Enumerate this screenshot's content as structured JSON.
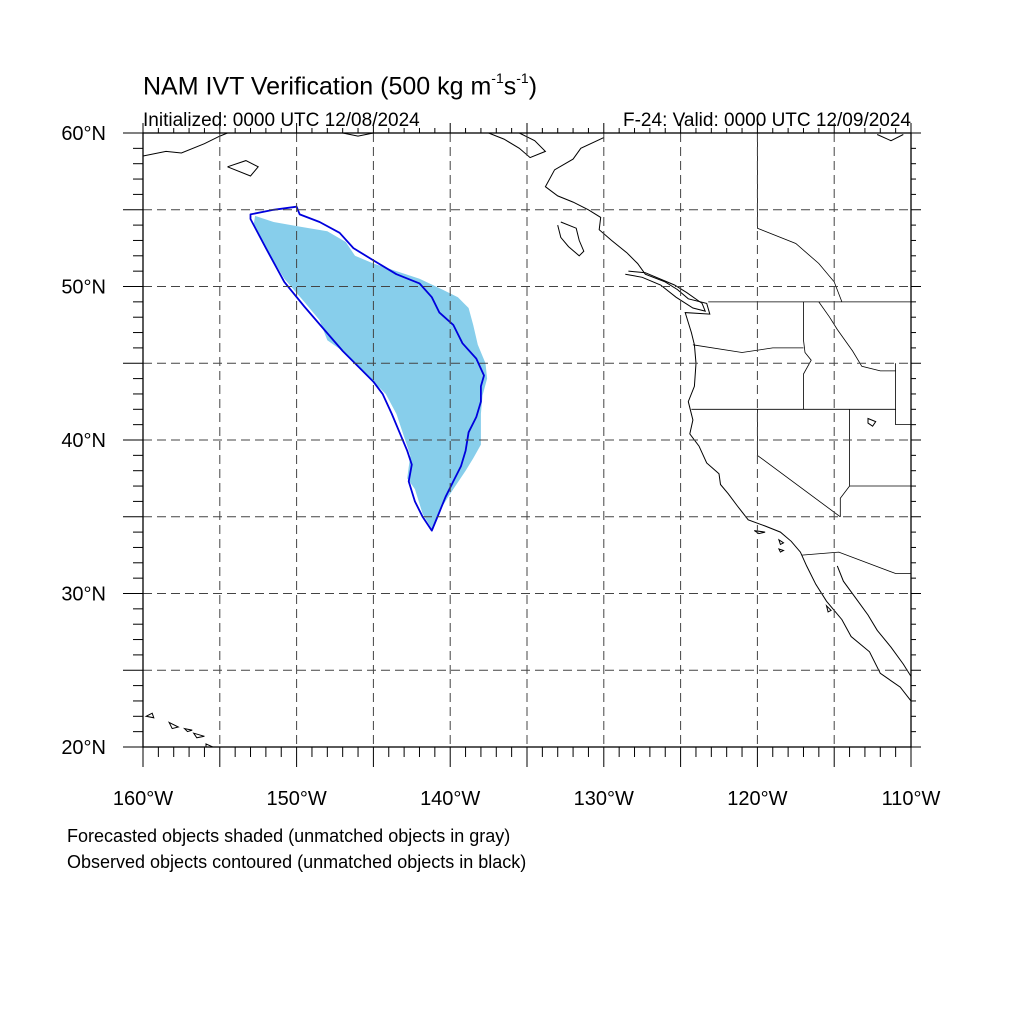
{
  "title": {
    "main": "NAM IVT Verification (500 kg m",
    "exp1": "-1",
    "mid": "s",
    "exp2": "-1",
    "tail": ")"
  },
  "subtitle_left": "Initialized: 0000 UTC 12/08/2024",
  "subtitle_right": "F-24: Valid: 0000 UTC 12/09/2024",
  "notes": [
    "Forecasted objects shaded (unmatched objects in gray)",
    "Observed objects contoured (unmatched objects in black)"
  ],
  "axes": {
    "x_labels": [
      "160°W",
      "150°W",
      "140°W",
      "130°W",
      "120°W",
      "110°W"
    ],
    "y_labels": [
      "60°N",
      "50°N",
      "40°N",
      "30°N",
      "20°N"
    ]
  },
  "map": {
    "lon_range": [
      -160,
      -110
    ],
    "lat_range": [
      20,
      60
    ],
    "grid_step_deg": 5,
    "gridlines": true,
    "colors": {
      "forecast_fill": "#87ceeb",
      "observed_contour": "#0000dd",
      "gridline": "#444444",
      "coastline": "#000000"
    }
  },
  "forecast_object": {
    "color": "#87ceeb",
    "polygon": [
      [
        -152.7,
        54.6
      ],
      [
        -151.5,
        54.2
      ],
      [
        -149.8,
        53.9
      ],
      [
        -148.0,
        53.6
      ],
      [
        -146.8,
        52.9
      ],
      [
        -146.2,
        52.0
      ],
      [
        -145.0,
        51.5
      ],
      [
        -143.5,
        51.0
      ],
      [
        -142.0,
        50.5
      ],
      [
        -140.5,
        49.8
      ],
      [
        -139.5,
        49.3
      ],
      [
        -138.8,
        48.6
      ],
      [
        -138.5,
        47.5
      ],
      [
        -138.2,
        46.2
      ],
      [
        -137.7,
        45.0
      ],
      [
        -137.6,
        44.0
      ],
      [
        -137.9,
        42.9
      ],
      [
        -138.0,
        41.7
      ],
      [
        -138.0,
        39.7
      ],
      [
        -138.5,
        38.8
      ],
      [
        -139.0,
        38.0
      ],
      [
        -139.8,
        36.8
      ],
      [
        -140.5,
        35.7
      ],
      [
        -141.2,
        34.2
      ],
      [
        -141.8,
        35.2
      ],
      [
        -142.3,
        36.8
      ],
      [
        -142.8,
        37.5
      ],
      [
        -142.6,
        39.0
      ],
      [
        -143.0,
        40.2
      ],
      [
        -143.5,
        41.7
      ],
      [
        -144.2,
        43.0
      ],
      [
        -145.5,
        44.3
      ],
      [
        -147.0,
        45.8
      ],
      [
        -148.0,
        46.5
      ],
      [
        -148.5,
        47.8
      ],
      [
        -149.5,
        49.0
      ],
      [
        -150.8,
        50.5
      ],
      [
        -152.0,
        52.5
      ],
      [
        -152.8,
        54.0
      ]
    ]
  },
  "observed_object": {
    "color": "#0000dd",
    "polygon": [
      [
        -153.0,
        54.7
      ],
      [
        -151.5,
        55.0
      ],
      [
        -150.0,
        55.2
      ],
      [
        -149.8,
        54.7
      ],
      [
        -148.5,
        54.2
      ],
      [
        -147.2,
        53.5
      ],
      [
        -146.3,
        52.5
      ],
      [
        -145.0,
        51.7
      ],
      [
        -143.5,
        50.8
      ],
      [
        -142.0,
        50.2
      ],
      [
        -141.2,
        49.3
      ],
      [
        -140.7,
        48.3
      ],
      [
        -139.8,
        47.5
      ],
      [
        -139.2,
        46.3
      ],
      [
        -138.3,
        45.3
      ],
      [
        -137.8,
        44.2
      ],
      [
        -138.0,
        43.5
      ],
      [
        -138.0,
        42.5
      ],
      [
        -138.3,
        41.5
      ],
      [
        -138.8,
        40.5
      ],
      [
        -139.0,
        39.3
      ],
      [
        -139.3,
        38.3
      ],
      [
        -139.8,
        37.3
      ],
      [
        -140.3,
        36.3
      ],
      [
        -140.7,
        35.3
      ],
      [
        -141.2,
        34.1
      ],
      [
        -141.8,
        35.0
      ],
      [
        -142.3,
        36.0
      ],
      [
        -142.7,
        37.3
      ],
      [
        -142.5,
        38.4
      ],
      [
        -142.8,
        39.3
      ],
      [
        -143.3,
        40.5
      ],
      [
        -143.8,
        41.7
      ],
      [
        -144.4,
        43.0
      ],
      [
        -145.0,
        43.8
      ],
      [
        -145.8,
        44.6
      ],
      [
        -147.0,
        45.8
      ],
      [
        -148.3,
        47.3
      ],
      [
        -149.5,
        48.7
      ],
      [
        -150.8,
        50.3
      ],
      [
        -152.0,
        52.5
      ],
      [
        -153.0,
        54.4
      ]
    ]
  },
  "coastlines": [
    [
      [
        -130.0,
        59.7
      ],
      [
        -131.5,
        59.0
      ],
      [
        -132.0,
        58.3
      ],
      [
        -133.2,
        57.6
      ],
      [
        -133.8,
        56.5
      ],
      [
        -133.0,
        55.9
      ],
      [
        -132.0,
        55.5
      ],
      [
        -131.0,
        55.0
      ],
      [
        -130.2,
        54.5
      ],
      [
        -130.3,
        53.7
      ],
      [
        -129.5,
        53.0
      ],
      [
        -128.5,
        52.2
      ],
      [
        -127.8,
        51.5
      ],
      [
        -127.3,
        50.8
      ],
      [
        -126.0,
        50.3
      ],
      [
        -125.2,
        49.8
      ],
      [
        -124.5,
        49.2
      ],
      [
        -123.3,
        48.9
      ],
      [
        -123.1,
        48.2
      ],
      [
        -124.7,
        48.3
      ],
      [
        -124.3,
        47.0
      ],
      [
        -124.1,
        46.2
      ],
      [
        -124.0,
        45.0
      ],
      [
        -124.1,
        43.5
      ],
      [
        -124.5,
        42.5
      ],
      [
        -124.2,
        41.3
      ],
      [
        -124.4,
        40.4
      ],
      [
        -123.8,
        39.6
      ],
      [
        -123.3,
        38.5
      ],
      [
        -122.5,
        37.8
      ],
      [
        -122.4,
        37.1
      ],
      [
        -121.9,
        36.5
      ],
      [
        -121.3,
        35.7
      ],
      [
        -120.6,
        34.8
      ],
      [
        -119.5,
        34.4
      ],
      [
        -118.5,
        34.0
      ],
      [
        -117.8,
        33.4
      ],
      [
        -117.2,
        32.7
      ],
      [
        -116.8,
        31.8
      ],
      [
        -116.2,
        30.6
      ],
      [
        -115.5,
        29.5
      ],
      [
        -114.5,
        28.3
      ],
      [
        -113.9,
        27.2
      ],
      [
        -112.7,
        26.2
      ],
      [
        -112.0,
        24.8
      ],
      [
        -110.7,
        23.9
      ],
      [
        -110.0,
        23.0
      ]
    ],
    [
      [
        -114.8,
        31.8
      ],
      [
        -114.4,
        30.8
      ],
      [
        -113.6,
        29.7
      ],
      [
        -112.8,
        28.6
      ],
      [
        -112.2,
        27.6
      ],
      [
        -111.3,
        26.5
      ],
      [
        -110.5,
        25.4
      ],
      [
        -110.0,
        24.6
      ]
    ],
    [
      [
        -160.0,
        58.5
      ],
      [
        -158.5,
        58.8
      ],
      [
        -157.5,
        58.7
      ],
      [
        -156.0,
        59.3
      ],
      [
        -155.0,
        59.8
      ],
      [
        -154.5,
        60.0
      ]
    ],
    [
      [
        -154.5,
        57.8
      ],
      [
        -153.0,
        57.2
      ],
      [
        -152.5,
        57.8
      ],
      [
        -153.3,
        58.2
      ],
      [
        -154.5,
        57.8
      ]
    ],
    [
      [
        -147.0,
        60.0
      ],
      [
        -146.0,
        59.8
      ],
      [
        -145.0,
        60.0
      ]
    ],
    [
      [
        -135.5,
        60.0
      ],
      [
        -134.5,
        59.5
      ],
      [
        -133.8,
        58.8
      ],
      [
        -134.8,
        58.4
      ],
      [
        -135.5,
        59.0
      ],
      [
        -136.5,
        59.6
      ],
      [
        -137.5,
        60.0
      ]
    ],
    [
      [
        -132.8,
        54.2
      ],
      [
        -131.8,
        53.8
      ],
      [
        -131.6,
        53.0
      ],
      [
        -131.3,
        52.3
      ],
      [
        -131.6,
        52.0
      ],
      [
        -132.3,
        52.6
      ],
      [
        -132.8,
        53.2
      ],
      [
        -133.0,
        54.0
      ]
    ],
    [
      [
        -128.6,
        50.8
      ],
      [
        -127.5,
        50.6
      ],
      [
        -126.3,
        50.1
      ],
      [
        -125.3,
        49.3
      ],
      [
        -124.2,
        48.6
      ],
      [
        -123.4,
        48.4
      ],
      [
        -123.6,
        48.9
      ],
      [
        -124.6,
        49.6
      ],
      [
        -125.4,
        50.1
      ],
      [
        -127.3,
        50.9
      ],
      [
        -128.4,
        51.0
      ]
    ],
    [
      [
        -112.2,
        59.9
      ],
      [
        -111.3,
        59.5
      ],
      [
        -110.5,
        59.9
      ]
    ]
  ],
  "borders": [
    [
      [
        -123.2,
        49.0
      ],
      [
        -110.0,
        49.0
      ]
    ],
    [
      [
        -117.0,
        49.0
      ],
      [
        -117.0,
        46.5
      ],
      [
        -116.9,
        45.7
      ],
      [
        -116.5,
        45.2
      ],
      [
        -117.0,
        44.3
      ],
      [
        -117.0,
        42.0
      ]
    ],
    [
      [
        -124.2,
        46.2
      ],
      [
        -121.0,
        45.7
      ],
      [
        -119.0,
        46.0
      ],
      [
        -117.0,
        46.0
      ]
    ],
    [
      [
        -124.3,
        42.0
      ],
      [
        -111.0,
        42.0
      ]
    ],
    [
      [
        -120.0,
        42.0
      ],
      [
        -120.0,
        39.0
      ],
      [
        -114.6,
        35.0
      ]
    ],
    [
      [
        -114.0,
        42.0
      ],
      [
        -114.0,
        37.0
      ],
      [
        -114.6,
        36.2
      ],
      [
        -114.6,
        35.0
      ]
    ],
    [
      [
        -111.0,
        45.0
      ],
      [
        -111.0,
        41.0
      ],
      [
        -110.0,
        41.0
      ]
    ],
    [
      [
        -114.0,
        37.0
      ],
      [
        -110.0,
        37.0
      ]
    ],
    [
      [
        -117.1,
        32.5
      ],
      [
        -114.7,
        32.7
      ],
      [
        -111.0,
        31.3
      ],
      [
        -110.0,
        31.3
      ]
    ],
    [
      [
        -120.0,
        60.0
      ],
      [
        -120.0,
        53.8
      ],
      [
        -117.5,
        52.8
      ],
      [
        -116.0,
        51.5
      ],
      [
        -115.0,
        50.3
      ],
      [
        -114.5,
        49.0
      ]
    ],
    [
      [
        -116.0,
        49.0
      ],
      [
        -115.3,
        48.0
      ],
      [
        -114.8,
        47.2
      ],
      [
        -113.8,
        45.8
      ],
      [
        -113.2,
        44.8
      ],
      [
        -112.0,
        44.5
      ],
      [
        -111.0,
        44.5
      ]
    ]
  ],
  "islands": [
    [
      [
        -159.8,
        22.0
      ],
      [
        -159.4,
        22.2
      ],
      [
        -159.3,
        21.9
      ],
      [
        -159.8,
        22.0
      ]
    ],
    [
      [
        -158.3,
        21.6
      ],
      [
        -157.7,
        21.3
      ],
      [
        -158.1,
        21.2
      ],
      [
        -158.3,
        21.6
      ]
    ],
    [
      [
        -157.3,
        21.2
      ],
      [
        -156.8,
        21.1
      ],
      [
        -157.1,
        21.0
      ],
      [
        -157.3,
        21.2
      ]
    ],
    [
      [
        -156.7,
        20.9
      ],
      [
        -156.0,
        20.7
      ],
      [
        -156.5,
        20.6
      ],
      [
        -156.7,
        20.9
      ]
    ],
    [
      [
        -155.9,
        20.2
      ],
      [
        -155.0,
        19.8
      ],
      [
        -155.5,
        19.2
      ],
      [
        -155.9,
        19.8
      ],
      [
        -155.9,
        20.2
      ]
    ],
    [
      [
        -120.2,
        34.1
      ],
      [
        -119.5,
        34.0
      ],
      [
        -119.9,
        33.9
      ],
      [
        -120.2,
        34.1
      ]
    ],
    [
      [
        -118.6,
        33.5
      ],
      [
        -118.3,
        33.3
      ],
      [
        -118.5,
        33.2
      ],
      [
        -118.6,
        33.5
      ]
    ],
    [
      [
        -118.6,
        32.9
      ],
      [
        -118.3,
        32.8
      ],
      [
        -118.5,
        32.7
      ],
      [
        -118.6,
        32.9
      ]
    ],
    [
      [
        -115.5,
        29.2
      ],
      [
        -115.2,
        28.9
      ],
      [
        -115.4,
        28.8
      ],
      [
        -115.5,
        29.2
      ]
    ],
    [
      [
        -112.8,
        41.4
      ],
      [
        -112.3,
        41.2
      ],
      [
        -112.5,
        40.9
      ],
      [
        -112.8,
        41.1
      ],
      [
        -112.8,
        41.4
      ]
    ]
  ]
}
